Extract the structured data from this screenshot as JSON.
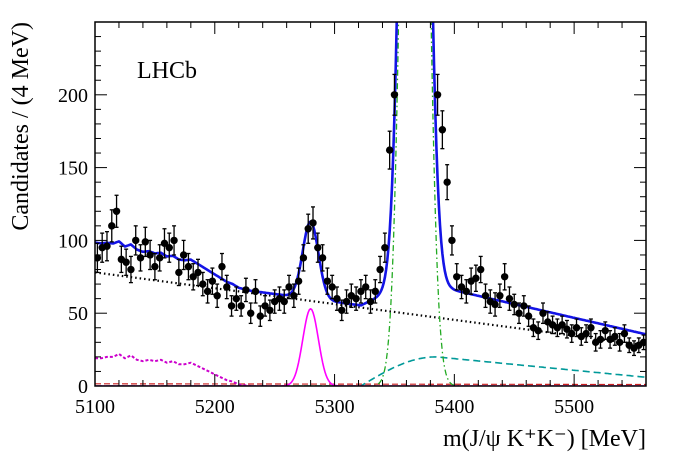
{
  "chart_data": {
    "type": "line",
    "logo": "LHCb",
    "xlabel": "m(J/ψ K⁺K⁻) [MeV]",
    "ylabel": "Candidates / (4 MeV)",
    "xlim": [
      5100,
      5560
    ],
    "ylim": [
      0,
      250
    ],
    "xticks": [
      {
        "value": 5100,
        "label": "5100"
      },
      {
        "value": 5200,
        "label": "5200"
      },
      {
        "value": 5300,
        "label": "5300"
      },
      {
        "value": 5400,
        "label": "5400"
      },
      {
        "value": 5500,
        "label": "5500"
      }
    ],
    "yticks": [
      {
        "value": 0,
        "label": "0"
      },
      {
        "value": 50,
        "label": "50"
      },
      {
        "value": 100,
        "label": "100"
      },
      {
        "value": 150,
        "label": "150"
      },
      {
        "value": 200,
        "label": "200"
      }
    ],
    "colors": {
      "data": "#000000",
      "total_fit": "#1414e6",
      "bd_peak": "#ff00ff",
      "reflection": "#cc00cc",
      "bs_peak": "#22aa22",
      "combinatorial": "#000000",
      "partial_reco": "#009999",
      "other": "#cc2222"
    },
    "series": [
      {
        "name": "data",
        "style": "points",
        "x": [
          5102,
          5106,
          5110,
          5114,
          5118,
          5122,
          5126,
          5130,
          5134,
          5138,
          5142,
          5146,
          5150,
          5154,
          5158,
          5162,
          5166,
          5170,
          5174,
          5178,
          5182,
          5186,
          5190,
          5194,
          5198,
          5202,
          5206,
          5210,
          5214,
          5218,
          5222,
          5226,
          5230,
          5234,
          5238,
          5242,
          5246,
          5250,
          5254,
          5258,
          5262,
          5266,
          5270,
          5274,
          5278,
          5282,
          5286,
          5290,
          5294,
          5298,
          5302,
          5306,
          5310,
          5314,
          5318,
          5322,
          5326,
          5330,
          5334,
          5338,
          5342,
          5346,
          5350,
          5386,
          5390,
          5394,
          5398,
          5402,
          5406,
          5410,
          5414,
          5418,
          5422,
          5426,
          5430,
          5434,
          5438,
          5442,
          5446,
          5450,
          5454,
          5458,
          5462,
          5466,
          5470,
          5474,
          5478,
          5482,
          5486,
          5490,
          5494,
          5498,
          5502,
          5506,
          5510,
          5514,
          5518,
          5522,
          5526,
          5530,
          5534,
          5538,
          5542,
          5546,
          5550,
          5554,
          5558
        ],
        "y": [
          88,
          95,
          96,
          110,
          120,
          87,
          85,
          80,
          100,
          88,
          99,
          90,
          82,
          88,
          98,
          95,
          100,
          78,
          90,
          82,
          75,
          78,
          70,
          65,
          72,
          62,
          82,
          68,
          55,
          60,
          55,
          66,
          50,
          65,
          48,
          55,
          52,
          58,
          60,
          58,
          68,
          62,
          72,
          88,
          108,
          112,
          95,
          88,
          72,
          68,
          60,
          52,
          58,
          62,
          60,
          65,
          68,
          58,
          65,
          80,
          95,
          162,
          200,
          200,
          176,
          140,
          100,
          75,
          68,
          65,
          72,
          74,
          80,
          62,
          58,
          56,
          62,
          75,
          60,
          56,
          50,
          55,
          48,
          40,
          38,
          50,
          44,
          42,
          40,
          42,
          39,
          36,
          40,
          34,
          36,
          40,
          30,
          32,
          38,
          32,
          34,
          30,
          36,
          28,
          26,
          28,
          30
        ],
        "yerr": [
          10,
          10,
          10,
          11,
          11,
          9,
          9,
          9,
          10,
          9,
          10,
          10,
          9,
          9,
          10,
          10,
          10,
          9,
          10,
          9,
          9,
          9,
          8,
          8,
          9,
          8,
          9,
          8,
          7,
          8,
          7,
          8,
          7,
          8,
          7,
          7,
          7,
          8,
          8,
          8,
          8,
          8,
          9,
          9,
          10,
          11,
          10,
          9,
          9,
          8,
          8,
          7,
          8,
          8,
          8,
          8,
          8,
          8,
          8,
          9,
          10,
          13,
          14,
          14,
          13,
          12,
          10,
          9,
          8,
          8,
          9,
          9,
          9,
          8,
          8,
          8,
          8,
          9,
          8,
          7,
          7,
          7,
          7,
          6,
          6,
          7,
          7,
          6,
          6,
          6,
          6,
          6,
          6,
          6,
          6,
          6,
          6,
          6,
          6,
          6,
          6,
          6,
          6,
          5,
          5,
          5,
          5
        ]
      },
      {
        "name": "total_fit",
        "style": "solid",
        "x": [],
        "y": []
      },
      {
        "name": "combinatorial",
        "style": "dotted",
        "x": [
          5100,
          5560
        ],
        "y": [
          78,
          28
        ]
      },
      {
        "name": "bd_peak",
        "style": "solid",
        "x": [],
        "y": []
      },
      {
        "name": "bs_peak",
        "style": "dashdot",
        "x": [],
        "y": []
      },
      {
        "name": "partial_reco",
        "style": "dashed",
        "x": [],
        "y": []
      },
      {
        "name": "reflection",
        "style": "dotted-thick",
        "x": [
          5100,
          5105,
          5110,
          5115,
          5120,
          5125,
          5130,
          5135,
          5140,
          5145,
          5150,
          5155,
          5160,
          5165,
          5170,
          5175,
          5180,
          5185,
          5190,
          5195,
          5200,
          5205,
          5210,
          5215,
          5220,
          5225,
          5230
        ],
        "y": [
          19,
          19,
          20,
          20,
          22,
          19,
          21,
          18,
          17,
          18,
          17,
          18,
          16,
          17,
          15,
          15,
          16,
          14,
          12,
          10,
          8,
          6,
          4,
          3,
          1,
          0.5,
          0
        ]
      },
      {
        "name": "other",
        "style": "dashed-thin",
        "x": [
          5100,
          5560
        ],
        "y": [
          1.5,
          1
        ]
      }
    ]
  }
}
